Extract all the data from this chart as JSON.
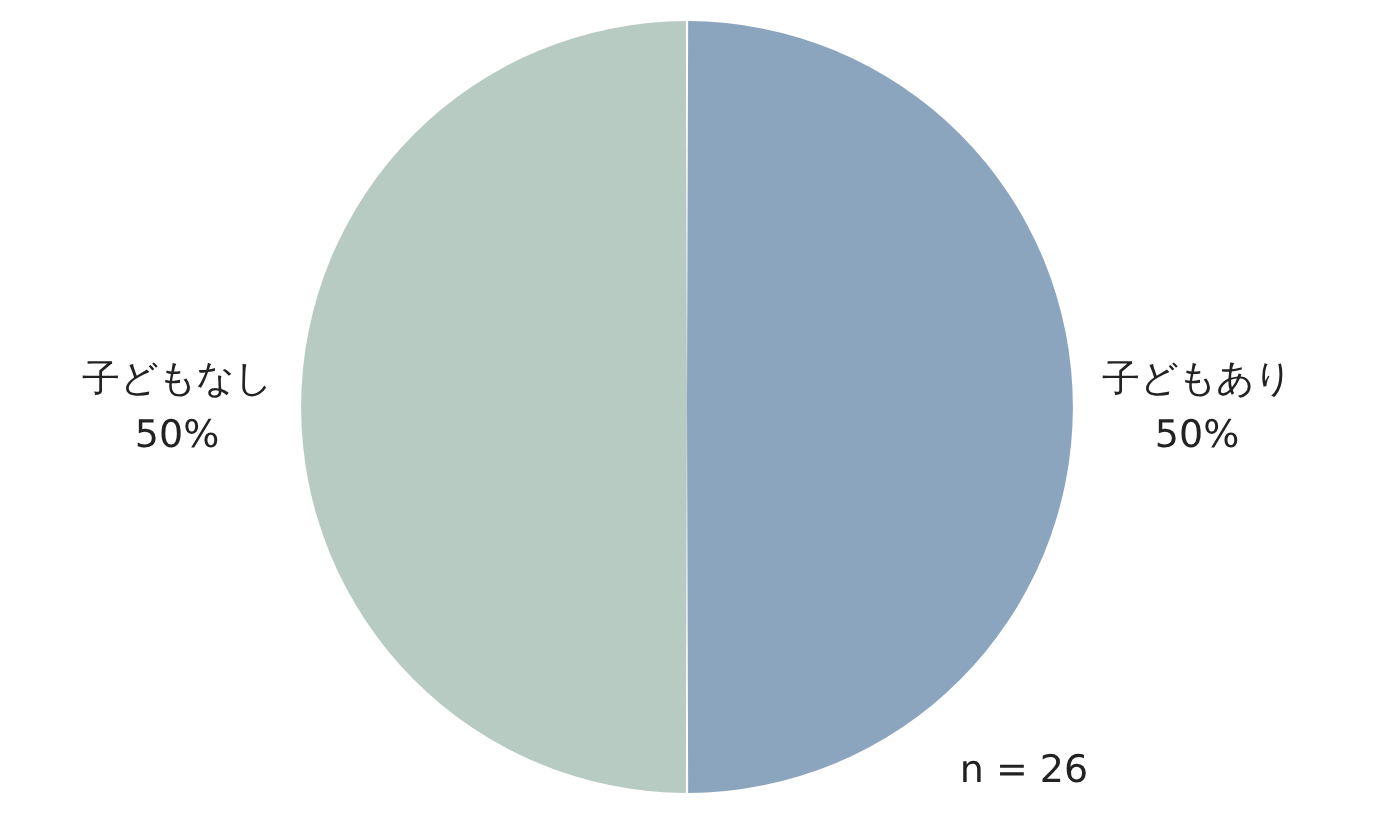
{
  "chart_data": {
    "type": "pie",
    "categories": [
      "子どもあり",
      "子どもなし"
    ],
    "values": [
      50,
      50
    ],
    "colors": [
      "#8ca5be",
      "#b8cbc2"
    ],
    "value_labels": [
      "50%",
      "50%"
    ],
    "annotations": [
      "n = 26"
    ]
  }
}
